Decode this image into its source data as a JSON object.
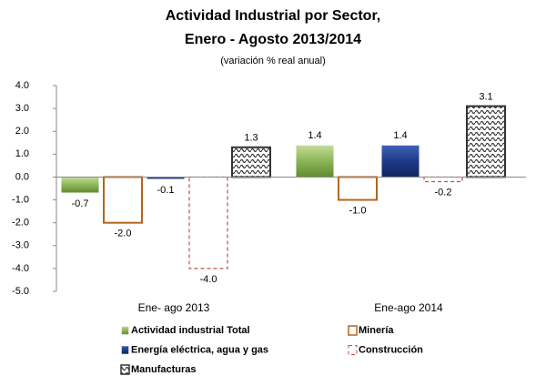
{
  "chart_data": {
    "type": "bar",
    "title": [
      "Actividad Industrial por Sector,",
      "Enero - Agosto 2013/2014"
    ],
    "subtitle": "(variación % real anual)",
    "categories": [
      "Ene- ago 2013",
      "Ene-ago 2014"
    ],
    "series": [
      {
        "name": "Actividad industrial Total",
        "color": "#8db557",
        "values": [
          -0.7,
          1.4
        ],
        "value_labels": [
          "-0.7",
          "1.4"
        ]
      },
      {
        "name": "Minería",
        "color": "#b5651d",
        "values": [
          -2.0,
          -1.0
        ],
        "value_labels": [
          "-2.0",
          "-1.0"
        ]
      },
      {
        "name": "Energía eléctrica, agua y  gas",
        "color": "#1f3a8a",
        "values": [
          -0.1,
          1.4
        ],
        "value_labels": [
          "-0.1",
          "1.4"
        ]
      },
      {
        "name": "Construcción",
        "color": "#c0504d",
        "values": [
          -4.0,
          -0.2
        ],
        "value_labels": [
          "-4.0",
          "-0.2"
        ]
      },
      {
        "name": "Manufacturas",
        "color": "#333333",
        "values": [
          1.3,
          3.1
        ],
        "value_labels": [
          "1.3",
          "3.1"
        ]
      }
    ],
    "ylim": [
      -5,
      4
    ],
    "yticks": [
      {
        "value": 4,
        "label": "4.0"
      },
      {
        "value": 3,
        "label": "3.0"
      },
      {
        "value": 2,
        "label": "2.0"
      },
      {
        "value": 1,
        "label": "1.0"
      },
      {
        "value": 0,
        "label": "0.0"
      },
      {
        "value": -1,
        "label": "-1.0"
      },
      {
        "value": -2,
        "label": "-2.0"
      },
      {
        "value": -3,
        "label": "-3.0"
      },
      {
        "value": -4,
        "label": "-4.0"
      },
      {
        "value": -5,
        "label": "-5.0"
      }
    ]
  }
}
